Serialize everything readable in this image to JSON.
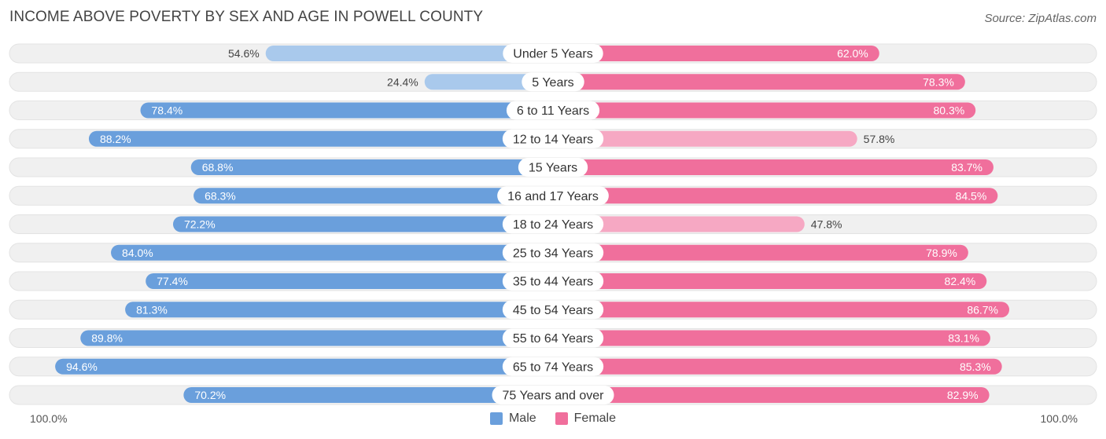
{
  "header": {
    "title": "INCOME ABOVE POVERTY BY SEX AND AGE IN POWELL COUNTY",
    "source": "Source: ZipAtlas.com"
  },
  "colors": {
    "male_strong": "#6a9fdc",
    "male_light": "#a9c9ec",
    "female_strong": "#f06f9c",
    "female_light": "#f6a8c3",
    "track": "#f0f0f0"
  },
  "chart_data": {
    "type": "bar",
    "orientation": "horizontal-diverging",
    "categories": [
      "Under 5 Years",
      "5 Years",
      "6 to 11 Years",
      "12 to 14 Years",
      "15 Years",
      "16 and 17 Years",
      "18 to 24 Years",
      "25 to 34 Years",
      "35 to 44 Years",
      "45 to 54 Years",
      "55 to 64 Years",
      "65 to 74 Years",
      "75 Years and over"
    ],
    "series": [
      {
        "name": "Male",
        "values": [
          54.6,
          24.4,
          78.4,
          88.2,
          68.8,
          68.3,
          72.2,
          84.0,
          77.4,
          81.3,
          89.8,
          94.6,
          70.2
        ],
        "labels": [
          "54.6%",
          "24.4%",
          "78.4%",
          "88.2%",
          "68.8%",
          "68.3%",
          "72.2%",
          "84.0%",
          "77.4%",
          "81.3%",
          "89.8%",
          "94.6%",
          "70.2%"
        ]
      },
      {
        "name": "Female",
        "values": [
          62.0,
          78.3,
          80.3,
          57.8,
          83.7,
          84.5,
          47.8,
          78.9,
          82.4,
          86.7,
          83.1,
          85.3,
          82.9
        ],
        "labels": [
          "62.0%",
          "78.3%",
          "80.3%",
          "57.8%",
          "83.7%",
          "84.5%",
          "47.8%",
          "78.9%",
          "82.4%",
          "86.7%",
          "83.1%",
          "85.3%",
          "82.9%"
        ]
      }
    ],
    "xlim": [
      0,
      100
    ],
    "axis_left_label": "100.0%",
    "axis_right_label": "100.0%",
    "legend": [
      "Male",
      "Female"
    ],
    "legend_position": "bottom-center"
  }
}
